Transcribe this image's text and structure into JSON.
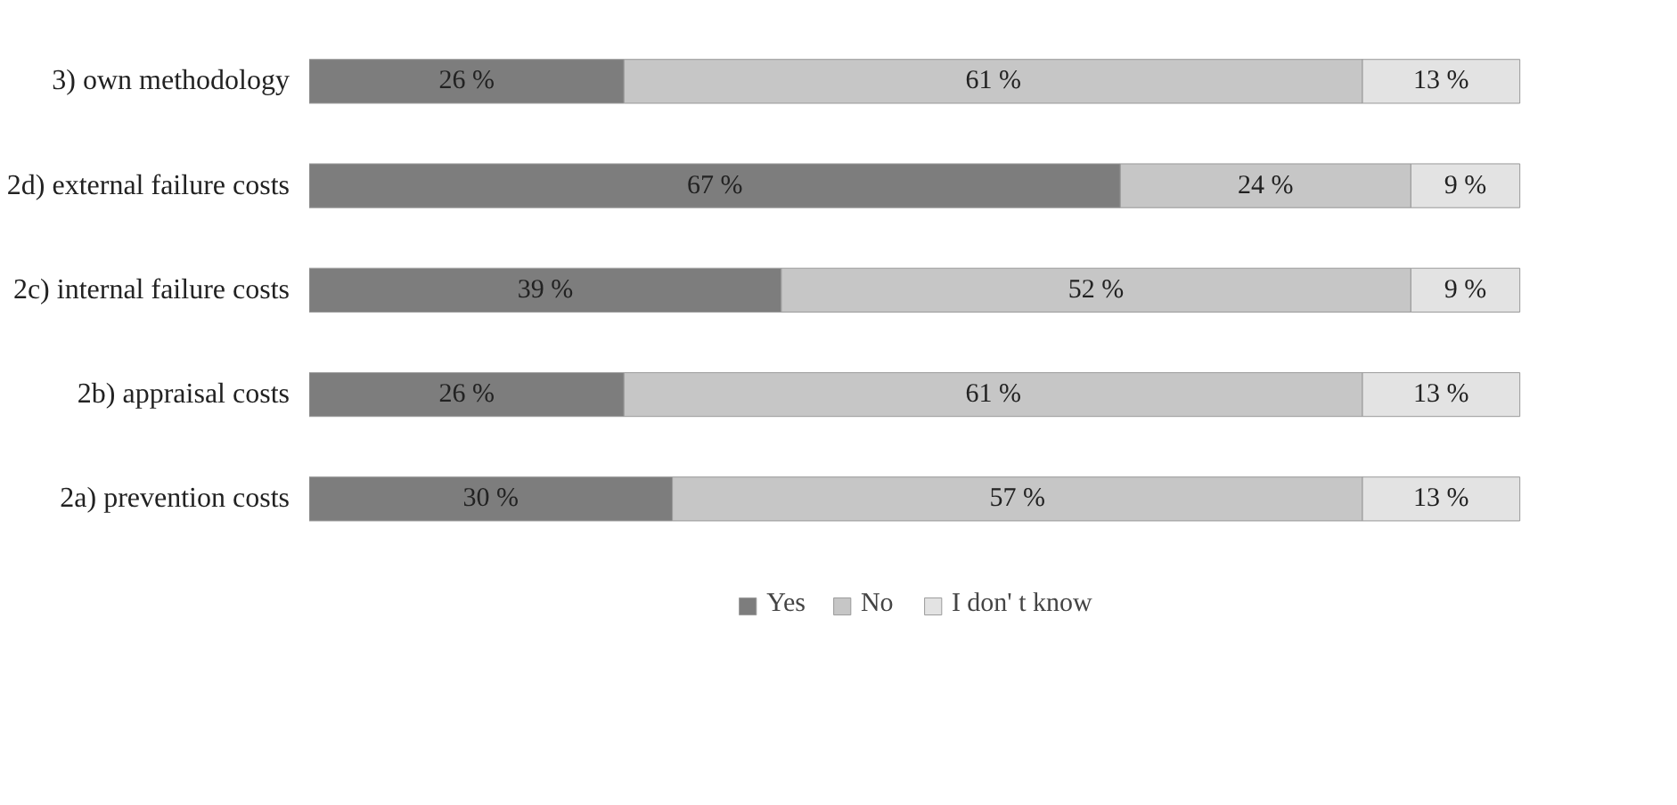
{
  "chart_data": {
    "type": "bar",
    "orientation": "horizontal",
    "stacked": true,
    "categories": [
      "3) own methodology",
      "2d) external failure costs",
      "2c) internal failure costs",
      "2b) appraisal costs",
      "2a) prevention costs"
    ],
    "series": [
      {
        "name": "Yes",
        "color": "#7d7d7d",
        "values": [
          26,
          67,
          39,
          26,
          30
        ],
        "value_labels": [
          "26 %",
          "67 %",
          "39 %",
          "26 %",
          "30 %"
        ]
      },
      {
        "name": "No",
        "color": "#c6c6c6",
        "values": [
          61,
          24,
          52,
          61,
          57
        ],
        "value_labels": [
          "61 %",
          "24 %",
          "52 %",
          "61 %",
          "57 %"
        ]
      },
      {
        "name": "I don' t know",
        "color": "#e3e3e3",
        "values": [
          13,
          9,
          9,
          13,
          13
        ],
        "value_labels": [
          "13 %",
          "9 %",
          "9 %",
          "13 %",
          "13 %"
        ]
      }
    ],
    "legend": "bottom",
    "grid": false
  }
}
